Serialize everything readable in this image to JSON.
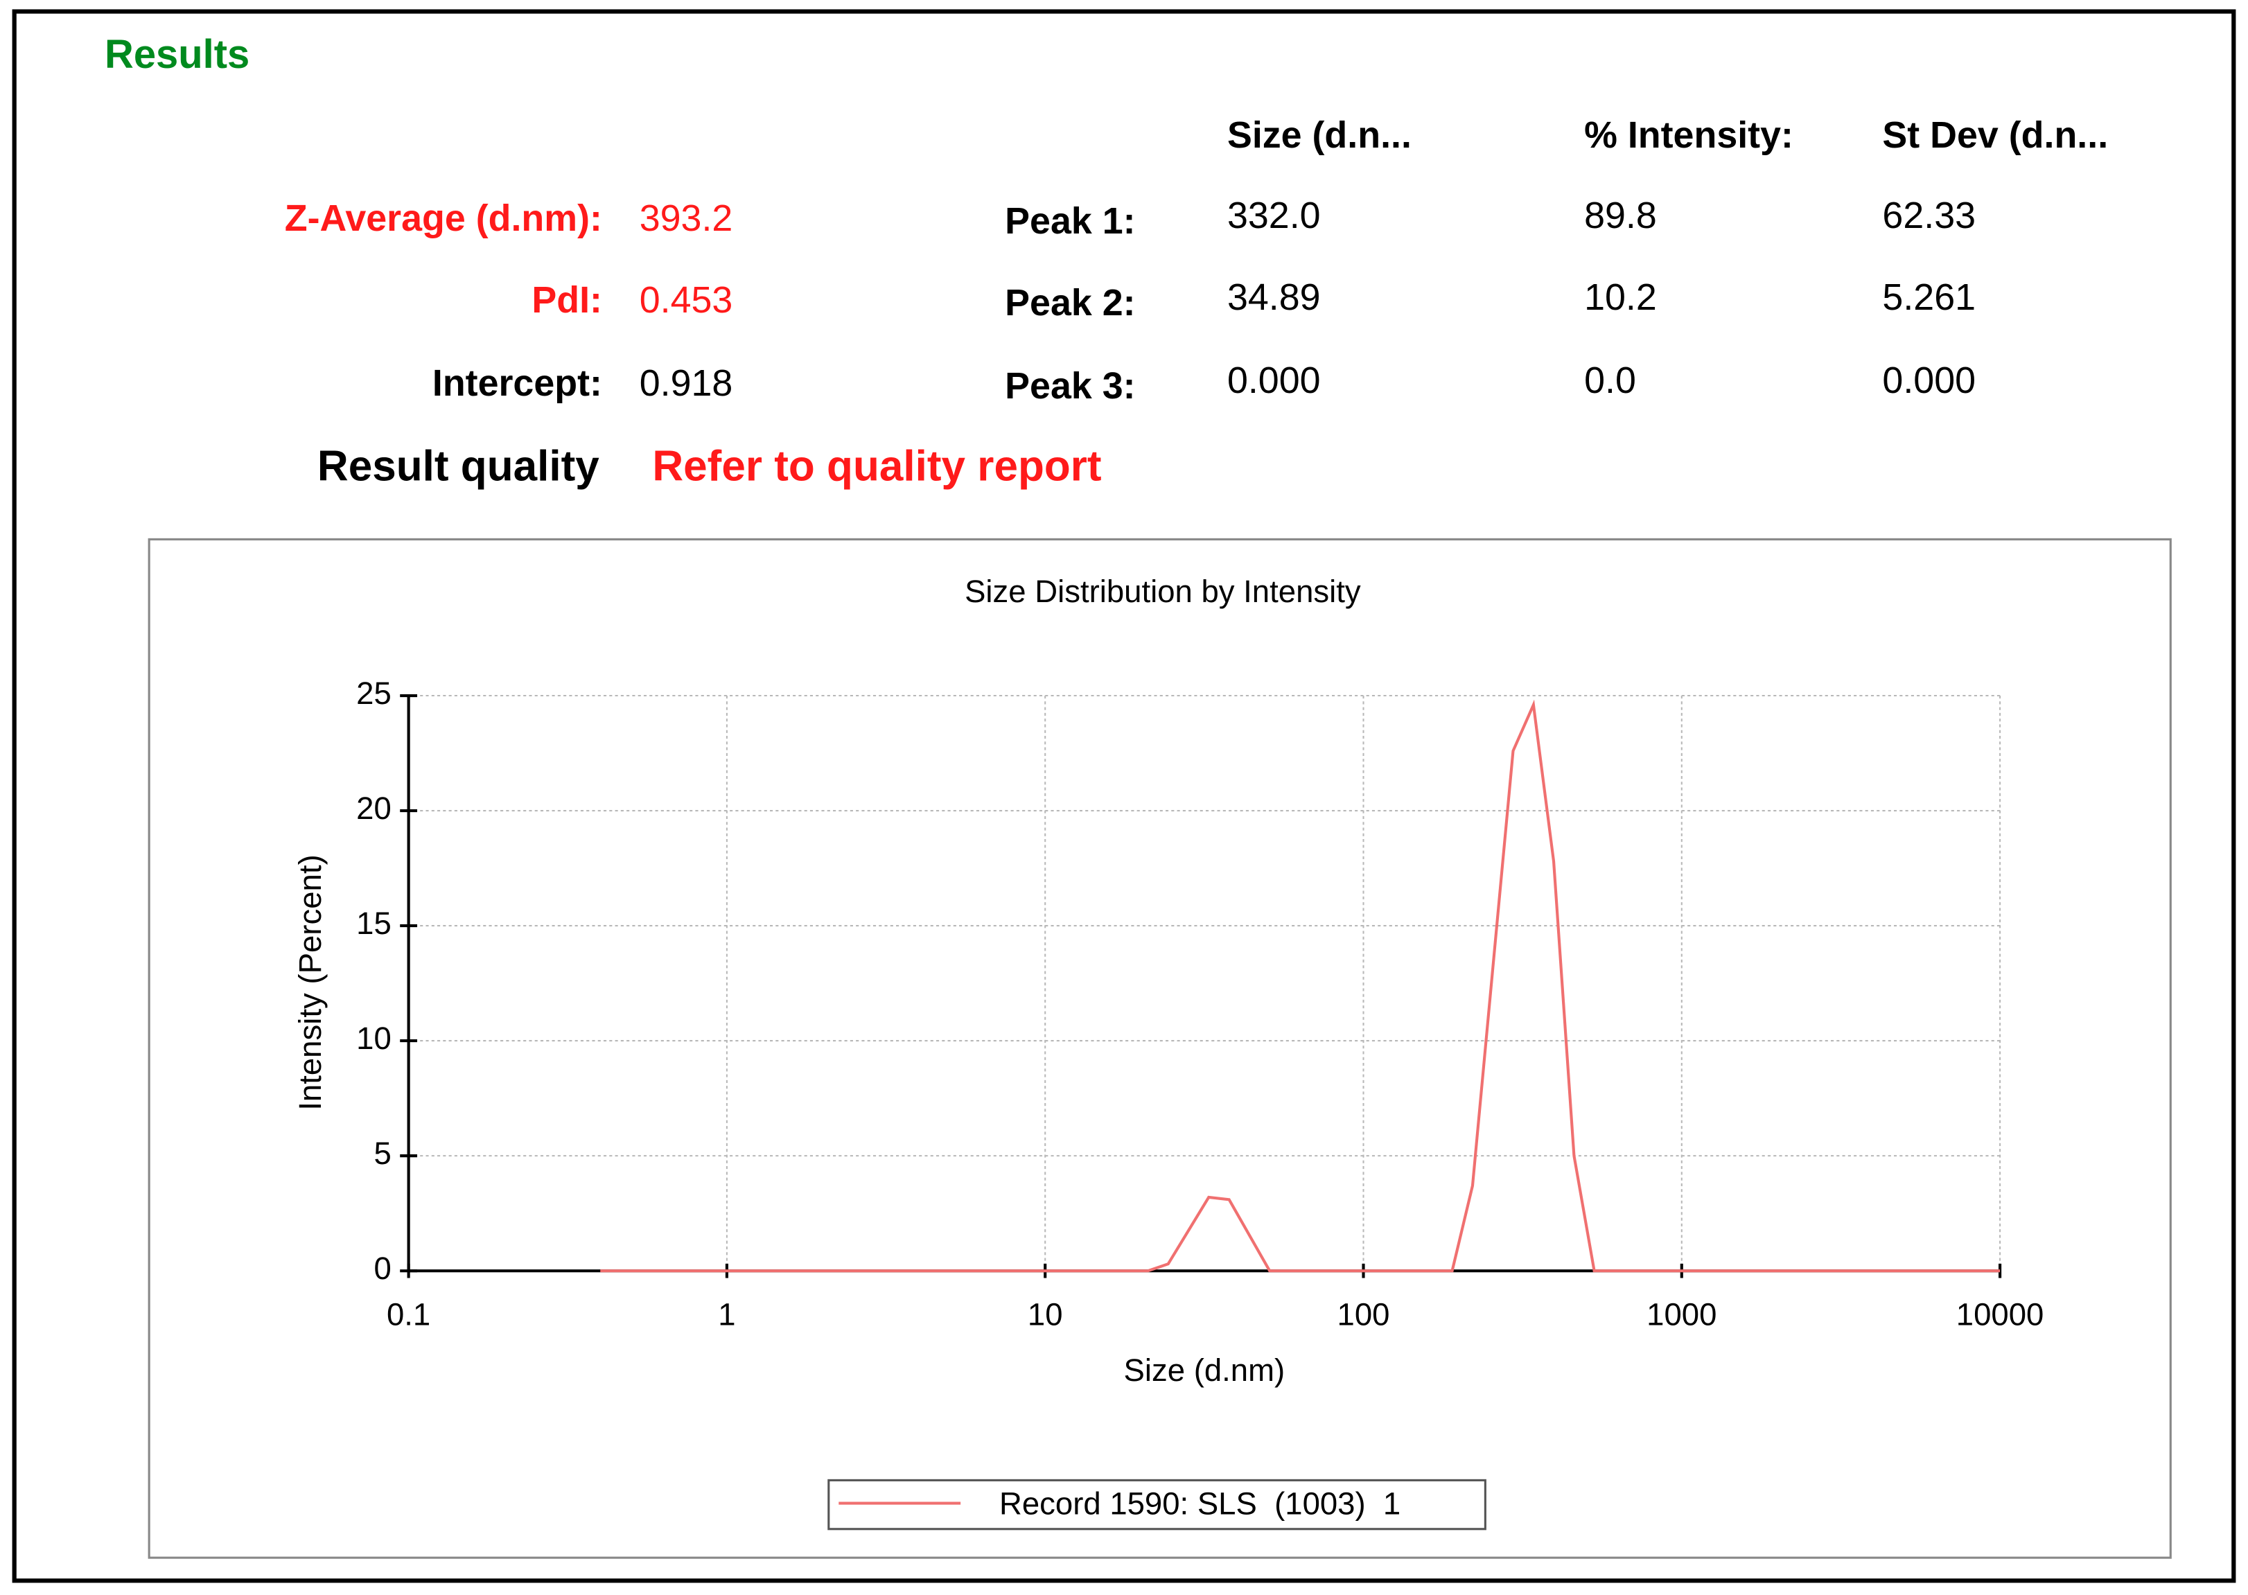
{
  "results": {
    "title": "Results",
    "columns": [
      "Size (d.n...",
      "% Intensity:",
      "St Dev (d.n..."
    ],
    "summary": [
      {
        "label": "Z-Average (d.nm):",
        "value": "393.2"
      },
      {
        "label": "PdI:",
        "value": "0.453"
      },
      {
        "label": "Intercept:",
        "value": "0.918"
      }
    ],
    "peaks": [
      {
        "label": "Peak 1:",
        "values": [
          "332.0",
          "89.8",
          "62.33"
        ]
      },
      {
        "label": "Peak 2:",
        "values": [
          "34.89",
          "10.2",
          "5.261"
        ]
      },
      {
        "label": "Peak 3:",
        "values": [
          "0.000",
          "0.0",
          "0.000"
        ]
      }
    ],
    "quality": {
      "label": "Result quality",
      "value": "Refer to quality report"
    }
  },
  "chart_data": {
    "type": "line",
    "title": "Size Distribution by Intensity",
    "x_label": "Size (d.nm)",
    "y_label": "Intensity (Percent)",
    "x_scale": "log",
    "xlim": [
      0.1,
      10000
    ],
    "xticks": [
      0.1,
      1,
      10,
      100,
      1000,
      10000
    ],
    "ylim": [
      0,
      25
    ],
    "yticks": [
      0,
      5,
      10,
      15,
      20,
      25
    ],
    "grid": true,
    "legend": "bottom",
    "series": [
      {
        "name": "Record 1590: SLS  (1003)  1",
        "color": "#f07070",
        "x": [
          0.4,
          21.04,
          24.36,
          32.67,
          37.84,
          50.75,
          190.1,
          220.2,
          295.3,
          342,
          396.1,
          458.7,
          531.2,
          10000
        ],
        "values": [
          0,
          0,
          0.3,
          3.2,
          3.1,
          0,
          0,
          3.7,
          22.6,
          24.6,
          17.8,
          5,
          0,
          0
        ]
      }
    ]
  }
}
